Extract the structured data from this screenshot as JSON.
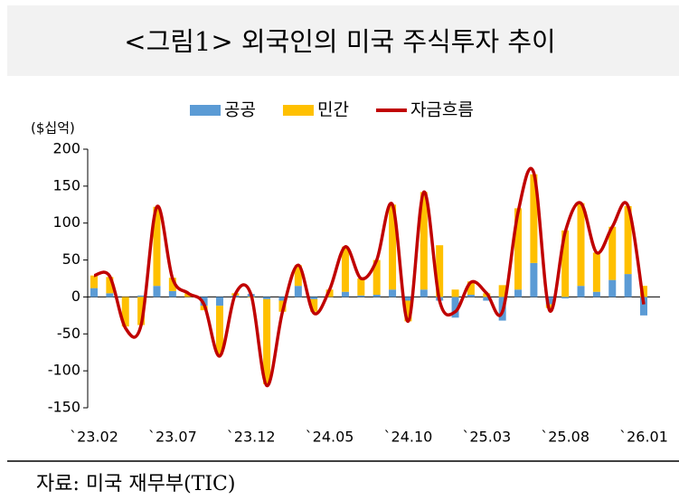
{
  "chart_data": {
    "type": "bar-line",
    "title": "<그림1> 외국인의 미국 주식투자 추이",
    "y_label": "($십억)",
    "source": "자료: 미국 재무부(TIC)",
    "categories": [
      "`23.02",
      null,
      null,
      null,
      null,
      "`23.07",
      null,
      null,
      null,
      null,
      "`23.12",
      null,
      null,
      null,
      null,
      "`24.05",
      null,
      null,
      null,
      null,
      "`24.10",
      null,
      null,
      null,
      null,
      "`25.03",
      null,
      null,
      null,
      null,
      "`25.08",
      null,
      null,
      null,
      null,
      "`26.01"
    ],
    "series": [
      {
        "name": "공공",
        "color": "#5b9bd5",
        "kind": "bar",
        "values": [
          12,
          5,
          0,
          2,
          15,
          8,
          0,
          -12,
          -12,
          2,
          4,
          -3,
          -5,
          15,
          -3,
          0,
          7,
          2,
          3,
          10,
          -5,
          10,
          -5,
          -28,
          3,
          -5,
          -32,
          10,
          46,
          -10,
          -2,
          15,
          7,
          23,
          31,
          -25
        ]
      },
      {
        "name": "민간",
        "color": "#ffc000",
        "kind": "bar",
        "values": [
          17,
          22,
          -40,
          -38,
          107,
          18,
          5,
          -6,
          -66,
          3,
          -1,
          -115,
          -15,
          28,
          -17,
          10,
          61,
          23,
          47,
          115,
          -28,
          132,
          70,
          10,
          18,
          5,
          16,
          110,
          120,
          -5,
          90,
          112,
          53,
          72,
          92,
          15
        ]
      },
      {
        "name": "자금흐름",
        "color": "#c00000",
        "kind": "line",
        "values": [
          29,
          28,
          -42,
          -38,
          122,
          25,
          5,
          -10,
          -80,
          4,
          3,
          -120,
          -20,
          43,
          -22,
          10,
          68,
          25,
          50,
          125,
          -33,
          142,
          -5,
          -20,
          20,
          5,
          -20,
          115,
          168,
          -18,
          88,
          127,
          60,
          95,
          123,
          -10
        ]
      }
    ],
    "ylim": [
      -150,
      200
    ],
    "yticks": [
      -150,
      -100,
      -50,
      0,
      50,
      100,
      150,
      200
    ]
  }
}
